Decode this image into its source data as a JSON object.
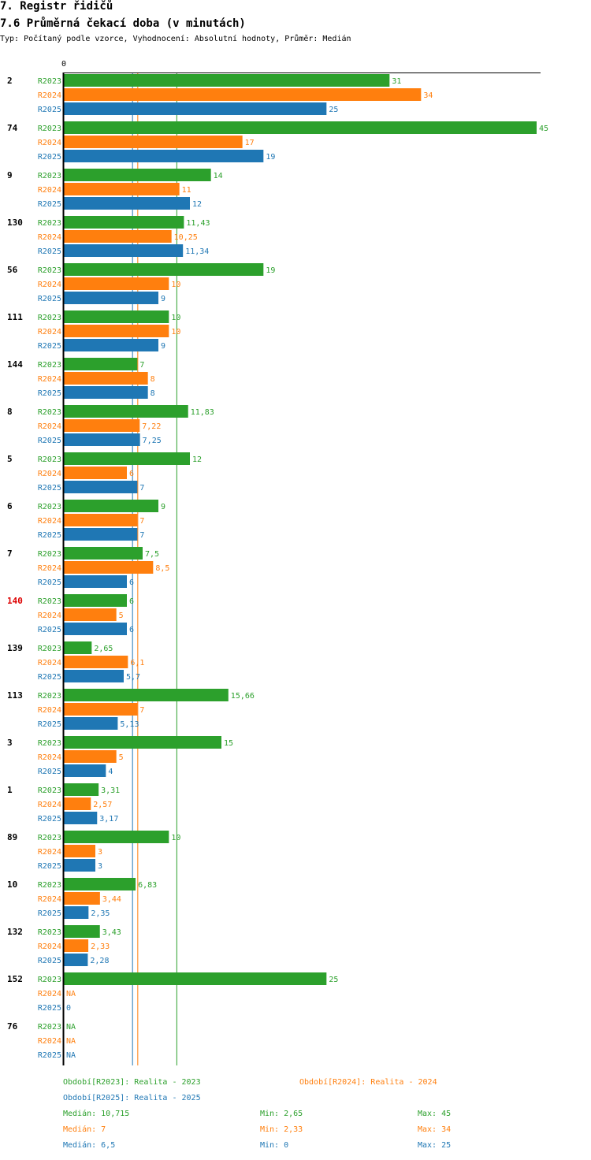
{
  "header": {
    "title": "7. Registr řidičů",
    "subtitle": "7.6 Průměrná čekací doba (v minutách)",
    "meta": "Typ: Počítaný podle vzorce, Vyhodnocení: Absolutní hodnoty, Průměr: Medián"
  },
  "colors": {
    "R2023": "#2ca02c",
    "R2024": "#ff7f0e",
    "R2025": "#1f77b4",
    "highlight": "#dd0000",
    "axis": "#000000"
  },
  "chart_data": {
    "type": "bar",
    "orientation": "horizontal",
    "title": "7.6 Průměrná čekací doba (v minutách)",
    "axis_zero_label": "0",
    "xlim": [
      0,
      45
    ],
    "series_names": [
      "R2023",
      "R2024",
      "R2025"
    ],
    "highlighted_category": "140",
    "categories": [
      {
        "label": "2",
        "values": [
          {
            "v": 31,
            "t": "31"
          },
          {
            "v": 34,
            "t": "34"
          },
          {
            "v": 25,
            "t": "25"
          }
        ]
      },
      {
        "label": "74",
        "values": [
          {
            "v": 45,
            "t": "45"
          },
          {
            "v": 17,
            "t": "17"
          },
          {
            "v": 19,
            "t": "19"
          }
        ]
      },
      {
        "label": "9",
        "values": [
          {
            "v": 14,
            "t": "14"
          },
          {
            "v": 11,
            "t": "11"
          },
          {
            "v": 12,
            "t": "12"
          }
        ]
      },
      {
        "label": "130",
        "values": [
          {
            "v": 11.43,
            "t": "11,43"
          },
          {
            "v": 10.25,
            "t": "10,25"
          },
          {
            "v": 11.34,
            "t": "11,34"
          }
        ]
      },
      {
        "label": "56",
        "values": [
          {
            "v": 19,
            "t": "19"
          },
          {
            "v": 10,
            "t": "10"
          },
          {
            "v": 9,
            "t": "9"
          }
        ]
      },
      {
        "label": "111",
        "values": [
          {
            "v": 10,
            "t": "10"
          },
          {
            "v": 10,
            "t": "10"
          },
          {
            "v": 9,
            "t": "9"
          }
        ]
      },
      {
        "label": "144",
        "values": [
          {
            "v": 7,
            "t": "7"
          },
          {
            "v": 8,
            "t": "8"
          },
          {
            "v": 8,
            "t": "8"
          }
        ]
      },
      {
        "label": "8",
        "values": [
          {
            "v": 11.83,
            "t": "11,83"
          },
          {
            "v": 7.22,
            "t": "7,22"
          },
          {
            "v": 7.25,
            "t": "7,25"
          }
        ]
      },
      {
        "label": "5",
        "values": [
          {
            "v": 12,
            "t": "12"
          },
          {
            "v": 6,
            "t": "6"
          },
          {
            "v": 7,
            "t": "7"
          }
        ]
      },
      {
        "label": "6",
        "values": [
          {
            "v": 9,
            "t": "9"
          },
          {
            "v": 7,
            "t": "7"
          },
          {
            "v": 7,
            "t": "7"
          }
        ]
      },
      {
        "label": "7",
        "values": [
          {
            "v": 7.5,
            "t": "7,5"
          },
          {
            "v": 8.5,
            "t": "8,5"
          },
          {
            "v": 6,
            "t": "6"
          }
        ]
      },
      {
        "label": "140",
        "values": [
          {
            "v": 6,
            "t": "6"
          },
          {
            "v": 5,
            "t": "5"
          },
          {
            "v": 6,
            "t": "6"
          }
        ]
      },
      {
        "label": "139",
        "values": [
          {
            "v": 2.65,
            "t": "2,65"
          },
          {
            "v": 6.1,
            "t": "6,1"
          },
          {
            "v": 5.7,
            "t": "5,7"
          }
        ]
      },
      {
        "label": "113",
        "values": [
          {
            "v": 15.66,
            "t": "15,66"
          },
          {
            "v": 7,
            "t": "7"
          },
          {
            "v": 5.13,
            "t": "5,13"
          }
        ]
      },
      {
        "label": "3",
        "values": [
          {
            "v": 15,
            "t": "15"
          },
          {
            "v": 5,
            "t": "5"
          },
          {
            "v": 4,
            "t": "4"
          }
        ]
      },
      {
        "label": "1",
        "values": [
          {
            "v": 3.31,
            "t": "3,31"
          },
          {
            "v": 2.57,
            "t": "2,57"
          },
          {
            "v": 3.17,
            "t": "3,17"
          }
        ]
      },
      {
        "label": "89",
        "values": [
          {
            "v": 10,
            "t": "10"
          },
          {
            "v": 3,
            "t": "3"
          },
          {
            "v": 3,
            "t": "3"
          }
        ]
      },
      {
        "label": "10",
        "values": [
          {
            "v": 6.83,
            "t": "6,83"
          },
          {
            "v": 3.44,
            "t": "3,44"
          },
          {
            "v": 2.35,
            "t": "2,35"
          }
        ]
      },
      {
        "label": "132",
        "values": [
          {
            "v": 3.43,
            "t": "3,43"
          },
          {
            "v": 2.33,
            "t": "2,33"
          },
          {
            "v": 2.28,
            "t": "2,28"
          }
        ]
      },
      {
        "label": "152",
        "values": [
          {
            "v": 25,
            "t": "25"
          },
          {
            "v": null,
            "t": "NA"
          },
          {
            "v": 0,
            "t": "0"
          }
        ]
      },
      {
        "label": "76",
        "values": [
          {
            "v": null,
            "t": "NA"
          },
          {
            "v": null,
            "t": "NA"
          },
          {
            "v": null,
            "t": "NA"
          }
        ]
      }
    ],
    "medians": [
      10.715,
      7,
      6.5
    ]
  },
  "legend": {
    "periods": [
      {
        "series": "R2023",
        "text": "Období[R2023]: Realita - 2023"
      },
      {
        "series": "R2024",
        "text": "Období[R2024]: Realita - 2024"
      },
      {
        "series": "R2025",
        "text": "Období[R2025]: Realita - 2025"
      }
    ],
    "stats": [
      {
        "series": "R2023",
        "median": "Medián: 10,715",
        "min": "Min: 2,65",
        "max": "Max: 45"
      },
      {
        "series": "R2024",
        "median": "Medián: 7",
        "min": "Min: 2,33",
        "max": "Max: 34"
      },
      {
        "series": "R2025",
        "median": "Medián: 6,5",
        "min": "Min: 0",
        "max": "Max: 25"
      }
    ]
  }
}
